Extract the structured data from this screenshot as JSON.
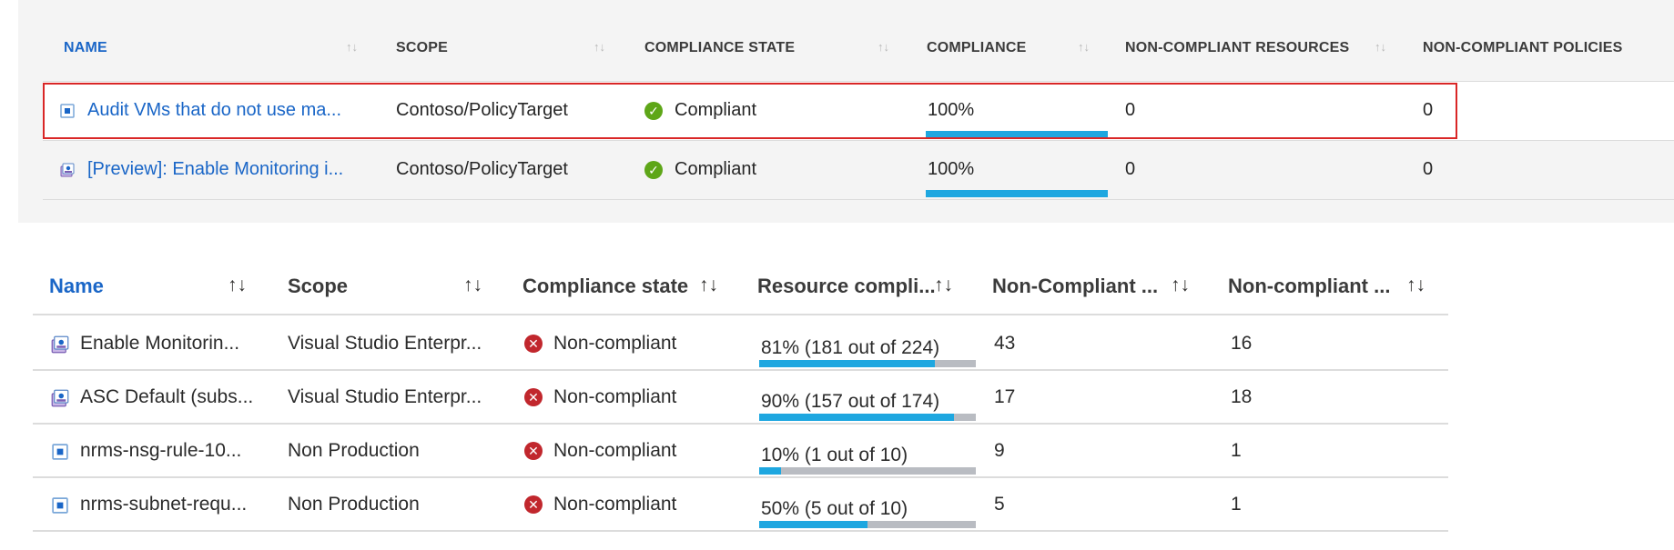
{
  "table1": {
    "headers": {
      "name": "NAME",
      "scope": "SCOPE",
      "state": "COMPLIANCE STATE",
      "compliance": "COMPLIANCE",
      "nc_resources": "NON-COMPLIANT RESOURCES",
      "nc_policies": "NON-COMPLIANT POLICIES"
    },
    "sort_icon": "↑↓",
    "rows": [
      {
        "name": "Audit VMs that do not use ma...",
        "scope": "Contoso/PolicyTarget",
        "state": "Compliant",
        "compliance": "100%",
        "compliance_fraction": 1.0,
        "nc_resources": "0",
        "nc_policies": "0",
        "icon": "policy-definition-icon"
      },
      {
        "name": "[Preview]: Enable Monitoring i...",
        "scope": "Contoso/PolicyTarget",
        "state": "Compliant",
        "compliance": "100%",
        "compliance_fraction": 1.0,
        "nc_resources": "0",
        "nc_policies": "0",
        "icon": "initiative-icon"
      }
    ]
  },
  "table2": {
    "headers": {
      "name": "Name",
      "scope": "Scope",
      "state": "Compliance state",
      "resource": "Resource compli...",
      "nc1": "Non-Compliant ...",
      "nc2": "Non-compliant ..."
    },
    "sort_icon": "↑↓",
    "rows": [
      {
        "name": "Enable Monitorin...",
        "scope": "Visual Studio Enterpr...",
        "state": "Non-compliant",
        "resource": "81% (181 out of 224)",
        "resource_fraction": 0.81,
        "nc1": "43",
        "nc2": "16",
        "icon": "initiative-icon"
      },
      {
        "name": "ASC Default (subs...",
        "scope": "Visual Studio Enterpr...",
        "state": "Non-compliant",
        "resource": "90% (157 out of 174)",
        "resource_fraction": 0.9,
        "nc1": "17",
        "nc2": "18",
        "icon": "initiative-icon"
      },
      {
        "name": "nrms-nsg-rule-10...",
        "scope": "Non Production",
        "state": "Non-compliant",
        "resource": "10% (1 out of 10)",
        "resource_fraction": 0.1,
        "nc1": "9",
        "nc2": "1",
        "icon": "policy-definition-icon"
      },
      {
        "name": "nrms-subnet-requ...",
        "scope": "Non Production",
        "state": "Non-compliant",
        "resource": "50% (5 out of 10)",
        "resource_fraction": 0.5,
        "nc1": "5",
        "nc2": "1",
        "icon": "policy-definition-icon"
      }
    ]
  },
  "colors": {
    "link": "#1a66c7",
    "bar_fill": "#1ea7e0",
    "bar_track": "#b9bcc2",
    "compliant": "#5ea618",
    "non_compliant": "#c1272d",
    "highlight": "#d92626"
  }
}
